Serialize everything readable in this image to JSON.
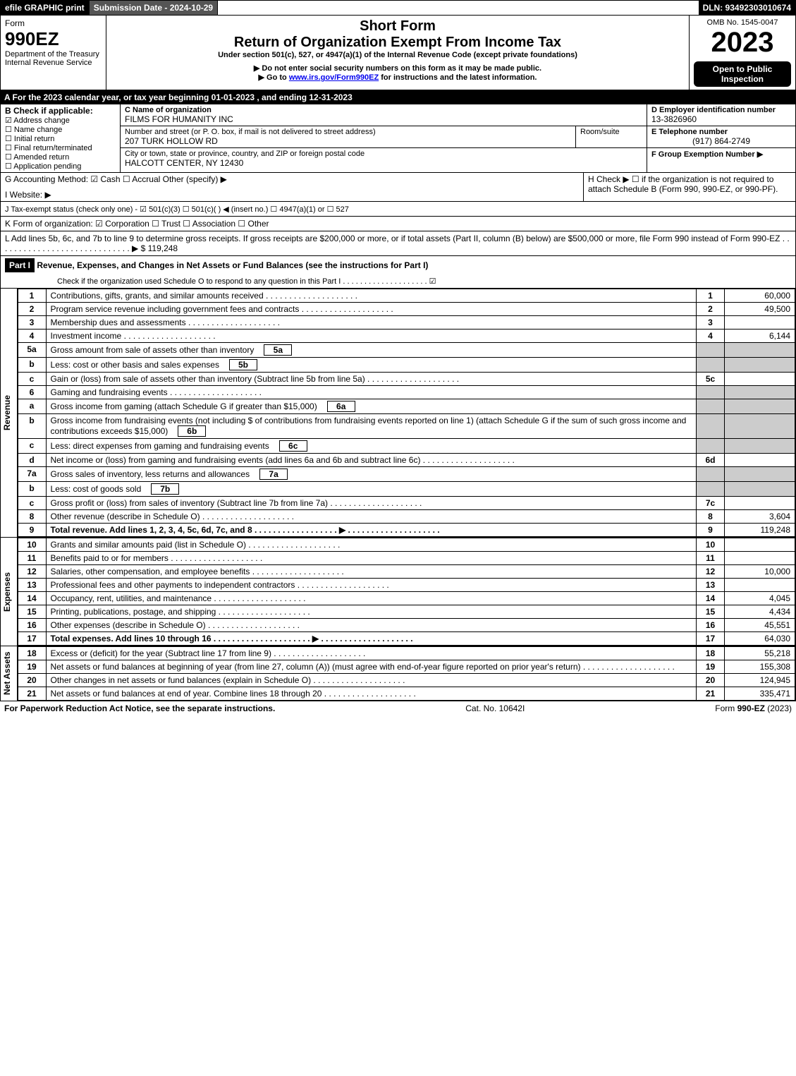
{
  "topbar": {
    "efile": "efile GRAPHIC print",
    "submission": "Submission Date - 2024-10-29",
    "dln": "DLN: 93492303010674"
  },
  "header": {
    "form_word": "Form",
    "form_no": "990EZ",
    "dept": "Department of the Treasury",
    "irs": "Internal Revenue Service",
    "short_form": "Short Form",
    "title": "Return of Organization Exempt From Income Tax",
    "subtitle": "Under section 501(c), 527, or 4947(a)(1) of the Internal Revenue Code (except private foundations)",
    "note1": "▶ Do not enter social security numbers on this form as it may be made public.",
    "note2": "▶ Go to www.irs.gov/Form990EZ for instructions and the latest information.",
    "omb": "OMB No. 1545-0047",
    "year": "2023",
    "open": "Open to Public Inspection"
  },
  "lineA": "A  For the 2023 calendar year, or tax year beginning 01-01-2023 , and ending 12-31-2023",
  "boxB": {
    "label": "B  Check if applicable:",
    "opts": [
      "Address change",
      "Name change",
      "Initial return",
      "Final return/terminated",
      "Amended return",
      "Application pending"
    ],
    "checked_index": 0
  },
  "boxC": {
    "name_label": "C Name of organization",
    "name": "FILMS FOR HUMANITY INC",
    "street_label": "Number and street (or P. O. box, if mail is not delivered to street address)",
    "street": "207 TURK HOLLOW RD",
    "room_label": "Room/suite",
    "city_label": "City or town, state or province, country, and ZIP or foreign postal code",
    "city": "HALCOTT CENTER, NY  12430"
  },
  "boxD": {
    "label": "D Employer identification number",
    "value": "13-3826960"
  },
  "boxE": {
    "label": "E Telephone number",
    "value": "(917) 864-2749"
  },
  "boxF": {
    "label": "F Group Exemption Number   ▶"
  },
  "lineG": "G Accounting Method:   ☑ Cash  ☐ Accrual   Other (specify) ▶",
  "lineH": "H   Check ▶  ☐  if the organization is not required to attach Schedule B (Form 990, 990-EZ, or 990-PF).",
  "lineI": "I Website: ▶",
  "lineJ": "J Tax-exempt status (check only one) - ☑ 501(c)(3) ☐ 501(c)(  ) ◀ (insert no.) ☐ 4947(a)(1) or ☐ 527",
  "lineK": "K Form of organization:   ☑ Corporation  ☐ Trust  ☐ Association  ☐ Other",
  "lineL": "L Add lines 5b, 6c, and 7b to line 9 to determine gross receipts. If gross receipts are $200,000 or more, or if total assets (Part II, column (B) below) are $500,000 or more, file Form 990 instead of Form 990-EZ . . . . . . . . . . . . . . . . . . . . . . . . . . . . . ▶ $ 119,248",
  "part1": {
    "label": "Part I",
    "title": "Revenue, Expenses, and Changes in Net Assets or Fund Balances (see the instructions for Part I)",
    "check_note": "Check if the organization used Schedule O to respond to any question in this Part I . . . . . . . . . . . . . . . . . . . .  ☑"
  },
  "sections": {
    "revenue": "Revenue",
    "expenses": "Expenses",
    "netassets": "Net Assets"
  },
  "rows": [
    {
      "n": "1",
      "desc": "Contributions, gifts, grants, and similar amounts received",
      "box": "1",
      "amt": "60,000"
    },
    {
      "n": "2",
      "desc": "Program service revenue including government fees and contracts",
      "box": "2",
      "amt": "49,500"
    },
    {
      "n": "3",
      "desc": "Membership dues and assessments",
      "box": "3",
      "amt": ""
    },
    {
      "n": "4",
      "desc": "Investment income",
      "box": "4",
      "amt": "6,144"
    },
    {
      "n": "5a",
      "desc": "Gross amount from sale of assets other than inventory",
      "sub": "5a",
      "shade": true
    },
    {
      "n": "b",
      "desc": "Less: cost or other basis and sales expenses",
      "sub": "5b",
      "shade": true
    },
    {
      "n": "c",
      "desc": "Gain or (loss) from sale of assets other than inventory (Subtract line 5b from line 5a)",
      "box": "5c",
      "amt": ""
    },
    {
      "n": "6",
      "desc": "Gaming and fundraising events",
      "shade": true
    },
    {
      "n": "a",
      "desc": "Gross income from gaming (attach Schedule G if greater than $15,000)",
      "sub": "6a",
      "shade": true
    },
    {
      "n": "b",
      "desc": "Gross income from fundraising events (not including $                 of contributions from fundraising events reported on line 1) (attach Schedule G if the sum of such gross income and contributions exceeds $15,000)",
      "sub": "6b",
      "shade": true
    },
    {
      "n": "c",
      "desc": "Less: direct expenses from gaming and fundraising events",
      "sub": "6c",
      "shade": true
    },
    {
      "n": "d",
      "desc": "Net income or (loss) from gaming and fundraising events (add lines 6a and 6b and subtract line 6c)",
      "box": "6d",
      "amt": ""
    },
    {
      "n": "7a",
      "desc": "Gross sales of inventory, less returns and allowances",
      "sub": "7a",
      "shade": true
    },
    {
      "n": "b",
      "desc": "Less: cost of goods sold",
      "sub": "7b",
      "shade": true
    },
    {
      "n": "c",
      "desc": "Gross profit or (loss) from sales of inventory (Subtract line 7b from line 7a)",
      "box": "7c",
      "amt": ""
    },
    {
      "n": "8",
      "desc": "Other revenue (describe in Schedule O)",
      "box": "8",
      "amt": "3,604"
    },
    {
      "n": "9",
      "desc": "Total revenue. Add lines 1, 2, 3, 4, 5c, 6d, 7c, and 8   . . . . . . . . . . . . . . . . . . ▶",
      "box": "9",
      "amt": "119,248",
      "bold": true
    }
  ],
  "exp_rows": [
    {
      "n": "10",
      "desc": "Grants and similar amounts paid (list in Schedule O)",
      "box": "10",
      "amt": ""
    },
    {
      "n": "11",
      "desc": "Benefits paid to or for members",
      "box": "11",
      "amt": ""
    },
    {
      "n": "12",
      "desc": "Salaries, other compensation, and employee benefits",
      "box": "12",
      "amt": "10,000"
    },
    {
      "n": "13",
      "desc": "Professional fees and other payments to independent contractors",
      "box": "13",
      "amt": ""
    },
    {
      "n": "14",
      "desc": "Occupancy, rent, utilities, and maintenance",
      "box": "14",
      "amt": "4,045"
    },
    {
      "n": "15",
      "desc": "Printing, publications, postage, and shipping",
      "box": "15",
      "amt": "4,434"
    },
    {
      "n": "16",
      "desc": "Other expenses (describe in Schedule O)",
      "box": "16",
      "amt": "45,551"
    },
    {
      "n": "17",
      "desc": "Total expenses. Add lines 10 through 16   . . . . . . . . . . . . . . . . . . . . . ▶",
      "box": "17",
      "amt": "64,030",
      "bold": true
    }
  ],
  "net_rows": [
    {
      "n": "18",
      "desc": "Excess or (deficit) for the year (Subtract line 17 from line 9)",
      "box": "18",
      "amt": "55,218"
    },
    {
      "n": "19",
      "desc": "Net assets or fund balances at beginning of year (from line 27, column (A)) (must agree with end-of-year figure reported on prior year's return)",
      "box": "19",
      "amt": "155,308"
    },
    {
      "n": "20",
      "desc": "Other changes in net assets or fund balances (explain in Schedule O)",
      "box": "20",
      "amt": "124,945"
    },
    {
      "n": "21",
      "desc": "Net assets or fund balances at end of year. Combine lines 18 through 20",
      "box": "21",
      "amt": "335,471"
    }
  ],
  "footer": {
    "left": "For Paperwork Reduction Act Notice, see the separate instructions.",
    "center": "Cat. No. 10642I",
    "right": "Form 990-EZ (2023)"
  }
}
